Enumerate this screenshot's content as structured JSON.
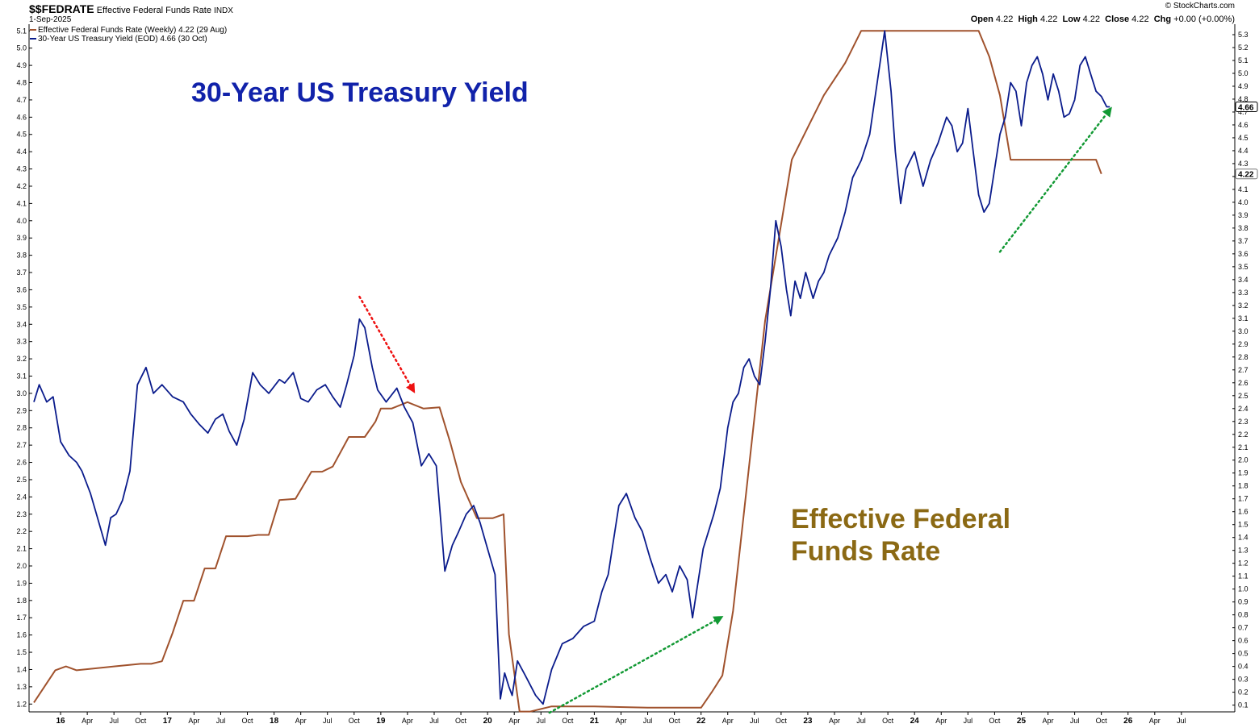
{
  "header": {
    "symbol": "$$FEDRATE",
    "name": "Effective Federal Funds Rate",
    "exchange": "INDX",
    "date": "1-Sep-2025",
    "open_label": "Open",
    "open": "4.22",
    "high_label": "High",
    "high": "4.22",
    "low_label": "Low",
    "low": "4.22",
    "close_label": "Close",
    "close": "4.22",
    "chg_label": "Chg",
    "chg": "+0.00 (+0.00%)",
    "watermark": "© StockCharts.com"
  },
  "chart_data": {
    "type": "line",
    "title": "",
    "annotations": {
      "treasury_title": "30-Year US Treasury Yield",
      "fed_title_line1": "Effective Federal",
      "fed_title_line2": "Funds Rate"
    },
    "x_range": [
      2015.75,
      2027.0
    ],
    "x_ticks": [
      {
        "x": 2016.0,
        "label": "16",
        "major": true
      },
      {
        "x": 2016.25,
        "label": "Apr"
      },
      {
        "x": 2016.5,
        "label": "Jul"
      },
      {
        "x": 2016.75,
        "label": "Oct"
      },
      {
        "x": 2017.0,
        "label": "17",
        "major": true
      },
      {
        "x": 2017.25,
        "label": "Apr"
      },
      {
        "x": 2017.5,
        "label": "Jul"
      },
      {
        "x": 2017.75,
        "label": "Oct"
      },
      {
        "x": 2018.0,
        "label": "18",
        "major": true
      },
      {
        "x": 2018.25,
        "label": "Apr"
      },
      {
        "x": 2018.5,
        "label": "Jul"
      },
      {
        "x": 2018.75,
        "label": "Oct"
      },
      {
        "x": 2019.0,
        "label": "19",
        "major": true
      },
      {
        "x": 2019.25,
        "label": "Apr"
      },
      {
        "x": 2019.5,
        "label": "Jul"
      },
      {
        "x": 2019.75,
        "label": "Oct"
      },
      {
        "x": 2020.0,
        "label": "20",
        "major": true
      },
      {
        "x": 2020.25,
        "label": "Apr"
      },
      {
        "x": 2020.5,
        "label": "Jul"
      },
      {
        "x": 2020.75,
        "label": "Oct"
      },
      {
        "x": 2021.0,
        "label": "21",
        "major": true
      },
      {
        "x": 2021.25,
        "label": "Apr"
      },
      {
        "x": 2021.5,
        "label": "Jul"
      },
      {
        "x": 2021.75,
        "label": "Oct"
      },
      {
        "x": 2022.0,
        "label": "22",
        "major": true
      },
      {
        "x": 2022.25,
        "label": "Apr"
      },
      {
        "x": 2022.5,
        "label": "Jul"
      },
      {
        "x": 2022.75,
        "label": "Oct"
      },
      {
        "x": 2023.0,
        "label": "23",
        "major": true
      },
      {
        "x": 2023.25,
        "label": "Apr"
      },
      {
        "x": 2023.5,
        "label": "Jul"
      },
      {
        "x": 2023.75,
        "label": "Oct"
      },
      {
        "x": 2024.0,
        "label": "24",
        "major": true
      },
      {
        "x": 2024.25,
        "label": "Apr"
      },
      {
        "x": 2024.5,
        "label": "Jul"
      },
      {
        "x": 2024.75,
        "label": "Oct"
      },
      {
        "x": 2025.0,
        "label": "25",
        "major": true
      },
      {
        "x": 2025.25,
        "label": "Apr"
      },
      {
        "x": 2025.5,
        "label": "Jul"
      },
      {
        "x": 2025.75,
        "label": "Oct"
      },
      {
        "x": 2026.0,
        "label": "26",
        "major": true
      },
      {
        "x": 2026.25,
        "label": "Apr"
      },
      {
        "x": 2026.5,
        "label": "Jul"
      }
    ],
    "left_axis": {
      "min": 1.15,
      "max": 5.12,
      "ticks": [
        "1.2",
        "1.3",
        "1.4",
        "1.5",
        "1.6",
        "1.7",
        "1.8",
        "1.9",
        "2.0",
        "2.1",
        "2.2",
        "2.3",
        "2.4",
        "2.5",
        "2.6",
        "2.7",
        "2.8",
        "2.9",
        "3.0",
        "3.1",
        "3.2",
        "3.3",
        "3.4",
        "3.5",
        "3.6",
        "3.7",
        "3.8",
        "3.9",
        "4.0",
        "4.1",
        "4.2",
        "4.3",
        "4.4",
        "4.5",
        "4.6",
        "4.7",
        "4.8",
        "4.9",
        "5.0",
        "5.1"
      ]
    },
    "right_axis": {
      "min": 0.06,
      "max": 5.35,
      "ticks": [
        "0.1",
        "0.2",
        "0.3",
        "0.4",
        "0.5",
        "0.6",
        "0.7",
        "0.8",
        "0.9",
        "1.0",
        "1.1",
        "1.2",
        "1.3",
        "1.4",
        "1.5",
        "1.6",
        "1.7",
        "1.8",
        "1.9",
        "2.0",
        "2.1",
        "2.2",
        "2.3",
        "2.4",
        "2.5",
        "2.6",
        "2.7",
        "2.8",
        "2.9",
        "3.0",
        "3.1",
        "3.2",
        "3.3",
        "3.4",
        "3.5",
        "3.6",
        "3.7",
        "3.8",
        "3.9",
        "4.0",
        "4.1",
        "4.2",
        "4.3",
        "4.4",
        "4.5",
        "4.6",
        "4.7",
        "4.8",
        "4.9",
        "5.0",
        "5.1",
        "5.2",
        "5.3"
      ]
    },
    "series": [
      {
        "name": "Effective Federal Funds Rate (Weekly)",
        "legend": "Effective Federal Funds Rate (Weekly) 4.22 (29 Aug)",
        "axis": "right",
        "color": "#a0522d",
        "last_label": "4.22",
        "x": [
          2015.75,
          2015.95,
          2016.05,
          2016.15,
          2016.5,
          2016.75,
          2016.85,
          2016.95,
          2017.05,
          2017.15,
          2017.25,
          2017.35,
          2017.45,
          2017.55,
          2017.75,
          2017.85,
          2017.95,
          2018.05,
          2018.2,
          2018.35,
          2018.45,
          2018.55,
          2018.7,
          2018.85,
          2018.95,
          2019.0,
          2019.1,
          2019.25,
          2019.4,
          2019.55,
          2019.65,
          2019.75,
          2019.9,
          2020.05,
          2020.15,
          2020.2,
          2020.3,
          2020.4,
          2020.6,
          2021.0,
          2021.5,
          2022.0,
          2022.1,
          2022.2,
          2022.3,
          2022.4,
          2022.5,
          2022.6,
          2022.75,
          2022.85,
          2023.0,
          2023.15,
          2023.35,
          2023.5,
          2023.6,
          2023.7,
          2024.5,
          2024.6,
          2024.7,
          2024.8,
          2024.9,
          2025.7,
          2025.75
        ],
        "values": [
          0.12,
          0.37,
          0.4,
          0.37,
          0.4,
          0.42,
          0.42,
          0.44,
          0.66,
          0.91,
          0.91,
          1.16,
          1.16,
          1.41,
          1.41,
          1.42,
          1.42,
          1.69,
          1.7,
          1.91,
          1.91,
          1.95,
          2.18,
          2.18,
          2.3,
          2.4,
          2.4,
          2.45,
          2.4,
          2.41,
          2.14,
          1.83,
          1.55,
          1.55,
          1.58,
          0.65,
          0.05,
          0.05,
          0.09,
          0.09,
          0.08,
          0.08,
          0.2,
          0.33,
          0.83,
          1.58,
          2.33,
          3.08,
          3.83,
          4.33,
          4.58,
          4.83,
          5.08,
          5.33,
          5.33,
          5.33,
          5.33,
          5.33,
          5.13,
          4.83,
          4.33,
          4.33,
          4.22
        ]
      },
      {
        "name": "30-Year US Treasury Yield (EOD)",
        "legend": "30-Year US Treasury Yield (EOD) 4.66 (30 Oct)",
        "axis": "left",
        "color": "#0b1c8c",
        "last_label": "4.66",
        "x": [
          2015.75,
          2015.8,
          2015.87,
          2015.93,
          2016.0,
          2016.08,
          2016.15,
          2016.2,
          2016.28,
          2016.35,
          2016.42,
          2016.47,
          2016.52,
          2016.58,
          2016.65,
          2016.72,
          2016.8,
          2016.87,
          2016.95,
          2017.05,
          2017.15,
          2017.22,
          2017.3,
          2017.38,
          2017.45,
          2017.52,
          2017.58,
          2017.65,
          2017.72,
          2017.8,
          2017.87,
          2017.95,
          2018.05,
          2018.1,
          2018.18,
          2018.25,
          2018.32,
          2018.4,
          2018.48,
          2018.55,
          2018.62,
          2018.68,
          2018.75,
          2018.8,
          2018.85,
          2018.92,
          2018.97,
          2019.05,
          2019.15,
          2019.22,
          2019.3,
          2019.38,
          2019.45,
          2019.52,
          2019.6,
          2019.67,
          2019.73,
          2019.8,
          2019.87,
          2019.93,
          2020.0,
          2020.07,
          2020.12,
          2020.16,
          2020.2,
          2020.23,
          2020.28,
          2020.35,
          2020.45,
          2020.52,
          2020.6,
          2020.7,
          2020.8,
          2020.9,
          2021.0,
          2021.07,
          2021.13,
          2021.18,
          2021.23,
          2021.3,
          2021.38,
          2021.45,
          2021.52,
          2021.6,
          2021.67,
          2021.73,
          2021.8,
          2021.87,
          2021.92,
          2021.97,
          2022.02,
          2022.07,
          2022.12,
          2022.18,
          2022.25,
          2022.3,
          2022.35,
          2022.4,
          2022.45,
          2022.5,
          2022.55,
          2022.6,
          2022.65,
          2022.7,
          2022.75,
          2022.8,
          2022.84,
          2022.88,
          2022.93,
          2022.98,
          2023.05,
          2023.1,
          2023.15,
          2023.2,
          2023.28,
          2023.35,
          2023.42,
          2023.5,
          2023.58,
          2023.65,
          2023.72,
          2023.78,
          2023.82,
          2023.87,
          2023.92,
          2024.0,
          2024.08,
          2024.15,
          2024.22,
          2024.3,
          2024.35,
          2024.4,
          2024.45,
          2024.5,
          2024.55,
          2024.6,
          2024.65,
          2024.7,
          2024.75,
          2024.8,
          2024.85,
          2024.9,
          2024.95,
          2025.0,
          2025.05,
          2025.1,
          2025.15,
          2025.2,
          2025.25,
          2025.3,
          2025.35,
          2025.4,
          2025.45,
          2025.5,
          2025.55,
          2025.6,
          2025.65,
          2025.7,
          2025.75,
          2025.8,
          2025.83
        ],
        "values": [
          2.95,
          3.05,
          2.95,
          2.98,
          2.72,
          2.64,
          2.6,
          2.55,
          2.42,
          2.27,
          2.12,
          2.28,
          2.3,
          2.38,
          2.55,
          3.05,
          3.15,
          3.0,
          3.05,
          2.98,
          2.95,
          2.88,
          2.82,
          2.77,
          2.85,
          2.88,
          2.78,
          2.7,
          2.85,
          3.12,
          3.05,
          3.0,
          3.08,
          3.06,
          3.12,
          2.97,
          2.95,
          3.02,
          3.05,
          2.98,
          2.92,
          3.05,
          3.22,
          3.43,
          3.38,
          3.15,
          3.02,
          2.95,
          3.03,
          2.92,
          2.83,
          2.58,
          2.65,
          2.58,
          1.97,
          2.12,
          2.2,
          2.3,
          2.35,
          2.25,
          2.1,
          1.95,
          1.23,
          1.38,
          1.3,
          1.25,
          1.45,
          1.37,
          1.25,
          1.2,
          1.4,
          1.55,
          1.58,
          1.65,
          1.68,
          1.85,
          1.95,
          2.15,
          2.35,
          2.42,
          2.28,
          2.2,
          2.05,
          1.9,
          1.95,
          1.85,
          2.0,
          1.92,
          1.7,
          1.9,
          2.1,
          2.2,
          2.3,
          2.45,
          2.8,
          2.95,
          3.0,
          3.15,
          3.2,
          3.1,
          3.05,
          3.3,
          3.6,
          4.0,
          3.85,
          3.6,
          3.45,
          3.65,
          3.55,
          3.7,
          3.55,
          3.65,
          3.7,
          3.8,
          3.9,
          4.05,
          4.25,
          4.35,
          4.5,
          4.8,
          5.1,
          4.75,
          4.4,
          4.1,
          4.3,
          4.4,
          4.2,
          4.35,
          4.45,
          4.6,
          4.55,
          4.4,
          4.45,
          4.65,
          4.4,
          4.15,
          4.05,
          4.1,
          4.3,
          4.5,
          4.6,
          4.8,
          4.75,
          4.55,
          4.8,
          4.9,
          4.95,
          4.85,
          4.7,
          4.85,
          4.75,
          4.6,
          4.62,
          4.7,
          4.9,
          4.95,
          4.85,
          4.75,
          4.72,
          4.66,
          4.66
        ]
      }
    ],
    "arrows": [
      {
        "color": "red",
        "axis": "left",
        "from": [
          2018.8,
          3.56
        ],
        "to": [
          2019.32,
          3.0
        ]
      },
      {
        "color": "green",
        "axis": "left",
        "from": [
          2020.58,
          1.15
        ],
        "to": [
          2022.21,
          1.71
        ]
      },
      {
        "color": "green",
        "axis": "left",
        "from": [
          2024.8,
          3.82
        ],
        "to": [
          2025.85,
          4.66
        ]
      }
    ]
  }
}
